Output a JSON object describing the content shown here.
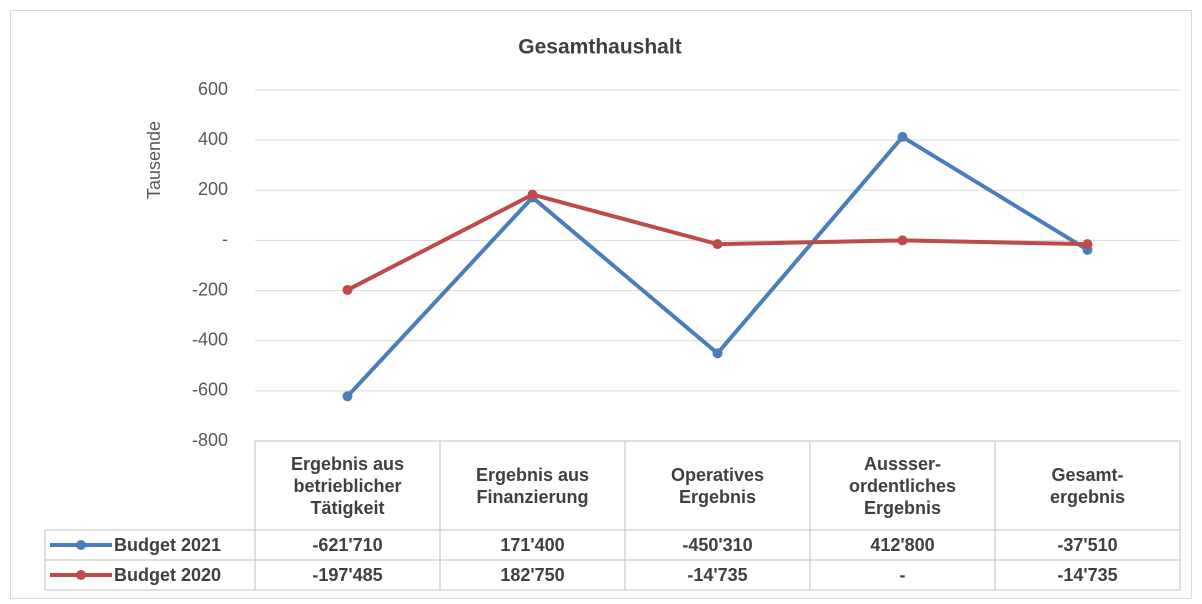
{
  "chart_data": {
    "type": "line",
    "title": "Gesamthaushalt",
    "y_label": "Tausende",
    "categories": [
      "Ergebnis aus\nbetrieblicher\nTätigkeit",
      "Ergebnis aus\nFinanzierung",
      "Operatives\nErgebnis",
      "Aussser-\nordentliches\nErgebnis",
      "Gesamt-\nergebnis"
    ],
    "series": [
      {
        "name": "Budget 2021",
        "color": "#4a7ebb",
        "values": [
          -621.71,
          171.4,
          -450.31,
          412.8,
          -37.51
        ],
        "value_labels": [
          "-621'710",
          "171'400",
          "-450'310",
          "412'800",
          "-37'510"
        ]
      },
      {
        "name": "Budget 2020",
        "color": "#be4b48",
        "values": [
          -197.485,
          182.75,
          -14.735,
          0,
          -14.735
        ],
        "value_labels": [
          "-197'485",
          "182'750",
          "-14'735",
          "-",
          "-14'735"
        ]
      }
    ],
    "ylim": [
      -800,
      600
    ],
    "yticks": [
      -800,
      -600,
      -400,
      -200,
      {
        "value": 0,
        "label": "-"
      },
      200,
      400,
      600
    ],
    "grid": true
  }
}
